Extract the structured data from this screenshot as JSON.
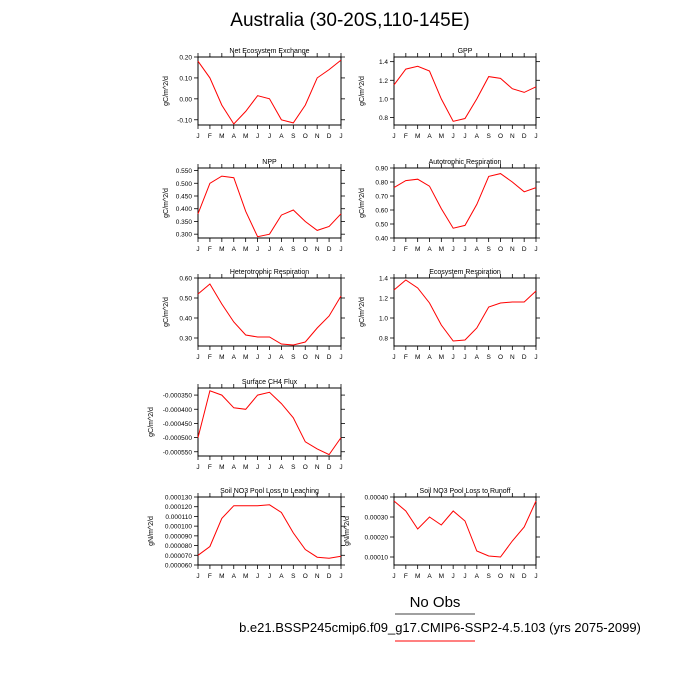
{
  "title": "Australia (30-20S,110-145E)",
  "legend": {
    "obs_label": "No Obs",
    "case_label": "b.e21.BSSP245cmip6.f09_g17.CMIP6-SSP2-4.5.103 (yrs 2075-2099)",
    "obs_color": "#000000",
    "case_color": "#ff0000"
  },
  "line_color": "#ff0000",
  "chart_data": [
    {
      "type": "line",
      "title": "Net Ecosystem Exchange",
      "ylabel": "gC/m^2/d",
      "x": [
        "J",
        "F",
        "M",
        "A",
        "M",
        "J",
        "J",
        "A",
        "S",
        "O",
        "N",
        "D",
        "J"
      ],
      "ylim": [
        -0.125,
        0.2
      ],
      "yticks": [
        0.2,
        0.1,
        0.0,
        -0.1
      ],
      "ytick_labels": [
        "0.20",
        "0.10",
        "0.00",
        "-0.10"
      ],
      "series": [
        {
          "values": [
            0.18,
            0.1,
            -0.03,
            -0.12,
            -0.06,
            0.015,
            0.0,
            -0.1,
            -0.115,
            -0.03,
            0.1,
            0.14,
            0.185
          ]
        }
      ]
    },
    {
      "type": "line",
      "title": "GPP",
      "ylabel": "gC/m^2/d",
      "x": [
        "J",
        "F",
        "M",
        "A",
        "M",
        "J",
        "J",
        "A",
        "S",
        "O",
        "N",
        "D",
        "J"
      ],
      "ylim": [
        0.72,
        1.45
      ],
      "yticks": [
        1.4,
        1.2,
        1.0,
        0.8
      ],
      "ytick_labels": [
        "1.4",
        "1.2",
        "1.0",
        "0.8"
      ],
      "series": [
        {
          "values": [
            1.15,
            1.32,
            1.35,
            1.3,
            1.0,
            0.76,
            0.79,
            1.0,
            1.24,
            1.22,
            1.11,
            1.07,
            1.13
          ]
        }
      ]
    },
    {
      "type": "line",
      "title": "NPP",
      "ylabel": "gC/m^2/d",
      "x": [
        "J",
        "F",
        "M",
        "A",
        "M",
        "J",
        "J",
        "A",
        "S",
        "O",
        "N",
        "D",
        "J"
      ],
      "ylim": [
        0.285,
        0.56
      ],
      "yticks": [
        0.55,
        0.5,
        0.45,
        0.4,
        0.35,
        0.3
      ],
      "ytick_labels": [
        "0.550",
        "0.500",
        "0.450",
        "0.400",
        "0.350",
        "0.300"
      ],
      "series": [
        {
          "values": [
            0.38,
            0.5,
            0.528,
            0.522,
            0.39,
            0.29,
            0.3,
            0.375,
            0.395,
            0.35,
            0.315,
            0.33,
            0.38
          ]
        }
      ]
    },
    {
      "type": "line",
      "title": "Autotrophic Respiration",
      "ylabel": "gC/m^2/d",
      "x": [
        "J",
        "F",
        "M",
        "A",
        "M",
        "J",
        "J",
        "A",
        "S",
        "O",
        "N",
        "D",
        "J"
      ],
      "ylim": [
        0.4,
        0.9
      ],
      "yticks": [
        0.9,
        0.8,
        0.7,
        0.6,
        0.5,
        0.4
      ],
      "ytick_labels": [
        "0.90",
        "0.80",
        "0.70",
        "0.60",
        "0.50",
        "0.40"
      ],
      "series": [
        {
          "values": [
            0.76,
            0.81,
            0.82,
            0.77,
            0.61,
            0.47,
            0.49,
            0.64,
            0.84,
            0.86,
            0.8,
            0.73,
            0.76
          ]
        }
      ]
    },
    {
      "type": "line",
      "title": "Heterotrophic Respiration",
      "ylabel": "gC/m^2/d",
      "x": [
        "J",
        "F",
        "M",
        "A",
        "M",
        "J",
        "J",
        "A",
        "S",
        "O",
        "N",
        "D",
        "J"
      ],
      "ylim": [
        0.26,
        0.6
      ],
      "yticks": [
        0.6,
        0.5,
        0.4,
        0.3
      ],
      "ytick_labels": [
        "0.60",
        "0.50",
        "0.40",
        "0.30"
      ],
      "series": [
        {
          "values": [
            0.52,
            0.57,
            0.47,
            0.38,
            0.315,
            0.305,
            0.305,
            0.27,
            0.265,
            0.28,
            0.35,
            0.41,
            0.51
          ]
        }
      ]
    },
    {
      "type": "line",
      "title": "Ecosystem Respiration",
      "ylabel": "gC/m^2/d",
      "x": [
        "J",
        "F",
        "M",
        "A",
        "M",
        "J",
        "J",
        "A",
        "S",
        "O",
        "N",
        "D",
        "J"
      ],
      "ylim": [
        0.72,
        1.4
      ],
      "yticks": [
        1.4,
        1.2,
        1.0,
        0.8
      ],
      "ytick_labels": [
        "1.4",
        "1.2",
        "1.0",
        "0.8"
      ],
      "series": [
        {
          "values": [
            1.28,
            1.38,
            1.3,
            1.15,
            0.93,
            0.77,
            0.78,
            0.9,
            1.11,
            1.15,
            1.16,
            1.16,
            1.27
          ]
        }
      ]
    },
    {
      "type": "line",
      "title": "Surface CH4 Flux",
      "ylabel": "gC/m^2/d",
      "x": [
        "J",
        "F",
        "M",
        "A",
        "M",
        "J",
        "J",
        "A",
        "S",
        "O",
        "N",
        "D",
        "J"
      ],
      "ylim": [
        -0.000565,
        -0.000325
      ],
      "yticks": [
        -0.00035,
        -0.0004,
        -0.00045,
        -0.0005,
        -0.00055
      ],
      "ytick_labels": [
        "-0.000350",
        "-0.000400",
        "-0.000450",
        "-0.000500",
        "-0.000550"
      ],
      "series": [
        {
          "values": [
            -0.0005,
            -0.000335,
            -0.00035,
            -0.000395,
            -0.0004,
            -0.00035,
            -0.00034,
            -0.00038,
            -0.00043,
            -0.000515,
            -0.00054,
            -0.00056,
            -0.0005
          ]
        }
      ]
    },
    {
      "type": "line",
      "title": "Soil NO3 Pool Loss to Leaching",
      "ylabel": "gN/m^2/d",
      "x": [
        "J",
        "F",
        "M",
        "A",
        "M",
        "J",
        "J",
        "A",
        "S",
        "O",
        "N",
        "D",
        "J"
      ],
      "ylim": [
        6e-05,
        0.00013
      ],
      "yticks": [
        0.00013,
        0.00012,
        0.00011,
        0.0001,
        9e-05,
        8e-05,
        7e-05,
        6e-05
      ],
      "ytick_labels": [
        "0.000130",
        "0.000120",
        "0.000110",
        "0.000100",
        "0.000090",
        "0.000080",
        "0.000070",
        "0.000060"
      ],
      "series": [
        {
          "values": [
            7e-05,
            7.9e-05,
            0.000108,
            0.000121,
            0.000121,
            0.000121,
            0.000122,
            0.000114,
            9.3e-05,
            7.6e-05,
            6.8e-05,
            6.7e-05,
            6.9e-05
          ]
        }
      ]
    },
    {
      "type": "line",
      "title": "Soil NO3 Pool Loss to Runoff",
      "ylabel": "gN/m^2/d",
      "x": [
        "J",
        "F",
        "M",
        "A",
        "M",
        "J",
        "J",
        "A",
        "S",
        "O",
        "N",
        "D",
        "J"
      ],
      "ylim": [
        6e-05,
        0.0004
      ],
      "yticks": [
        0.0004,
        0.0003,
        0.0002,
        0.0001
      ],
      "ytick_labels": [
        "0.00040",
        "0.00030",
        "0.00020",
        "0.00010"
      ],
      "series": [
        {
          "values": [
            0.00038,
            0.00033,
            0.00024,
            0.0003,
            0.00026,
            0.00033,
            0.00028,
            0.00013,
            0.000105,
            0.0001,
            0.00018,
            0.00025,
            0.00038
          ]
        }
      ]
    }
  ]
}
